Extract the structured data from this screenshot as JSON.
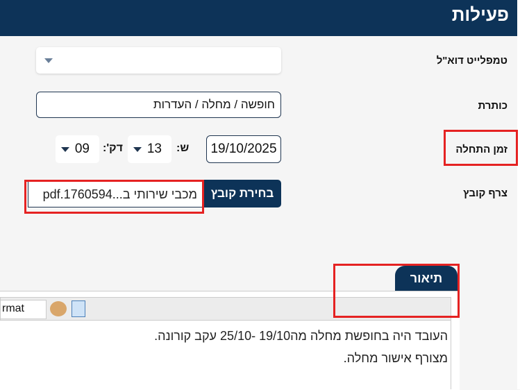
{
  "header": {
    "title": "פעילות"
  },
  "form": {
    "email_template_label": "טמפלייט דוא\"ל",
    "subject_label": "כותרת",
    "subject_value": "חופשה / מחלה / העדרות",
    "start_time_label": "זמן התחלה",
    "date_value": "19/10/2025",
    "hour_label": "ש:",
    "hour_value": "13",
    "minute_label": "דק':",
    "minute_value": "09",
    "attach_label": "צרף קובץ",
    "choose_file_button": "בחירת קובץ",
    "file_name": "מכבי שירותי ב...1760594.pdf"
  },
  "editor": {
    "tab_label": "תיאור",
    "format_value": "rmat",
    "lines": [
      "העובד היה בחופשת מחלה מה19/10 -25/10 עקב קורונה.",
      "מצורף אישור מחלה."
    ]
  },
  "colors": {
    "navy": "#0d3358",
    "highlight": "#e52222"
  }
}
